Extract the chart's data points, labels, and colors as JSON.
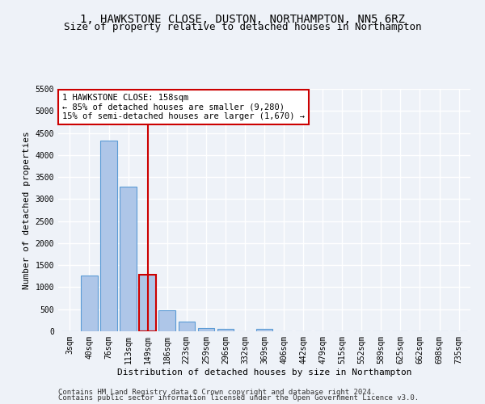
{
  "title": "1, HAWKSTONE CLOSE, DUSTON, NORTHAMPTON, NN5 6RZ",
  "subtitle": "Size of property relative to detached houses in Northampton",
  "xlabel": "Distribution of detached houses by size in Northampton",
  "ylabel": "Number of detached properties",
  "footnote1": "Contains HM Land Registry data © Crown copyright and database right 2024.",
  "footnote2": "Contains public sector information licensed under the Open Government Licence v3.0.",
  "bar_labels": [
    "3sqm",
    "40sqm",
    "76sqm",
    "113sqm",
    "149sqm",
    "186sqm",
    "223sqm",
    "259sqm",
    "296sqm",
    "332sqm",
    "369sqm",
    "406sqm",
    "442sqm",
    "479sqm",
    "515sqm",
    "552sqm",
    "589sqm",
    "625sqm",
    "662sqm",
    "698sqm",
    "735sqm"
  ],
  "bar_values": [
    0,
    1270,
    4330,
    3290,
    1280,
    480,
    215,
    75,
    50,
    0,
    55,
    0,
    0,
    0,
    0,
    0,
    0,
    0,
    0,
    0,
    0
  ],
  "bar_color": "#aec6e8",
  "bar_edge_color": "#5b9bd5",
  "highlight_bar_index": 4,
  "highlight_bar_edge_color": "#cc0000",
  "vline_color": "#cc0000",
  "ylim_max": 5500,
  "yticks": [
    0,
    500,
    1000,
    1500,
    2000,
    2500,
    3000,
    3500,
    4000,
    4500,
    5000,
    5500
  ],
  "annotation_line1": "1 HAWKSTONE CLOSE: 158sqm",
  "annotation_line2": "← 85% of detached houses are smaller (9,280)",
  "annotation_line3": "15% of semi-detached houses are larger (1,670) →",
  "bg_color": "#eef2f8",
  "grid_color": "#ffffff",
  "title_fontsize": 10,
  "subtitle_fontsize": 9,
  "ylabel_fontsize": 8,
  "xlabel_fontsize": 8,
  "tick_fontsize": 7,
  "annotation_fontsize": 7.5,
  "footnote_fontsize": 6.5
}
